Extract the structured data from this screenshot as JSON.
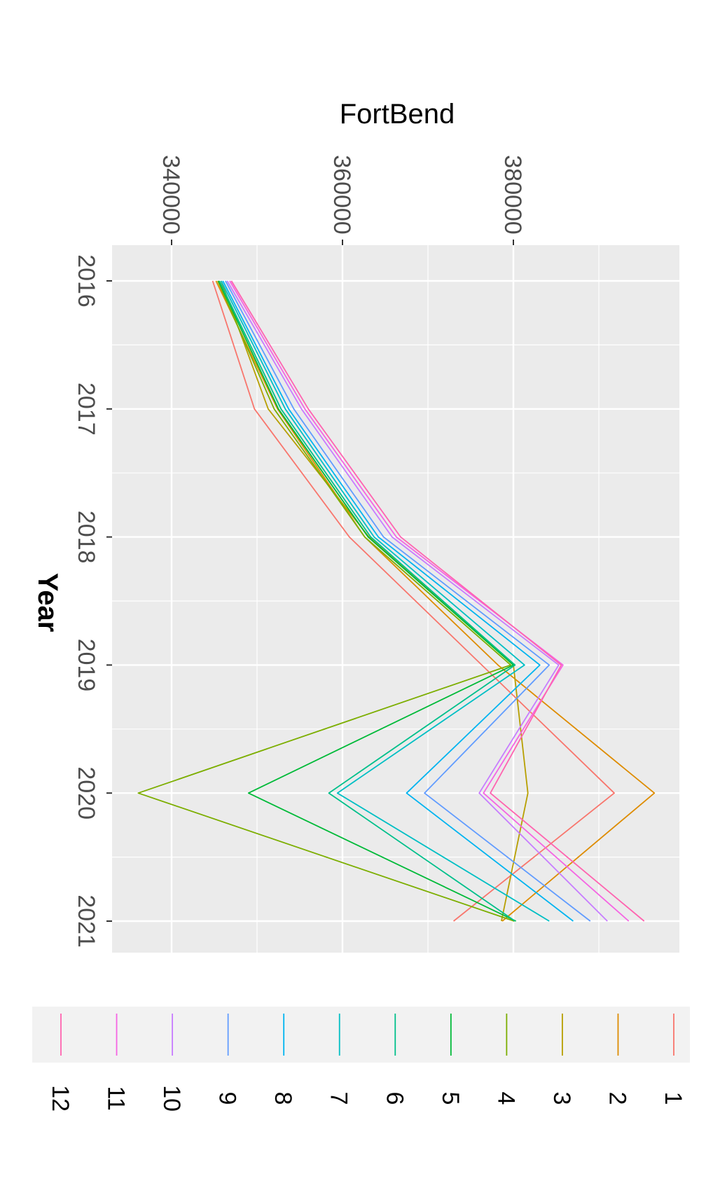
{
  "chart_data": {
    "type": "line",
    "title": "",
    "xlabel": "Year",
    "ylabel": "FortBend",
    "x": [
      2016,
      2017,
      2018,
      2019,
      2020,
      2021
    ],
    "x_tick_labels": [
      "2016",
      "2017",
      "2018",
      "2019",
      "2020",
      "2021"
    ],
    "y_ticks": [
      340000,
      360000,
      380000
    ],
    "y_tick_labels": [
      "340000",
      "360000",
      "380000"
    ],
    "xlim": [
      2015.7,
      2021.25
    ],
    "ylim": [
      333000,
      399500
    ],
    "grid": true,
    "legend_position": "bottom",
    "orientation": "rotated 90 degrees clockwise",
    "series": [
      {
        "name": "1",
        "color": "#F8766D",
        "values": [
          344800,
          349700,
          360800,
          376300,
          391800,
          373000
        ]
      },
      {
        "name": "2",
        "color": "#DE8C00",
        "values": [
          345200,
          352400,
          362600,
          378200,
          396500,
          378700
        ]
      },
      {
        "name": "3",
        "color": "#B79F00",
        "values": [
          345800,
          351300,
          363100,
          380000,
          381700,
          378600
        ]
      },
      {
        "name": "4",
        "color": "#7CAE00",
        "values": [
          345400,
          352000,
          362600,
          379700,
          336100,
          380100
        ]
      },
      {
        "name": "5",
        "color": "#00BA38",
        "values": [
          345500,
          352500,
          363000,
          380000,
          349000,
          380300
        ]
      },
      {
        "name": "6",
        "color": "#00C08B",
        "values": [
          345600,
          352800,
          363300,
          380200,
          358400,
          380200
        ]
      },
      {
        "name": "7",
        "color": "#00BFC4",
        "values": [
          345800,
          353300,
          363700,
          381300,
          359400,
          384200
        ]
      },
      {
        "name": "8",
        "color": "#00B4F0",
        "values": [
          346000,
          353700,
          364200,
          383100,
          367500,
          387000
        ]
      },
      {
        "name": "9",
        "color": "#619CFF",
        "values": [
          346300,
          354300,
          364800,
          384200,
          369600,
          389000
        ]
      },
      {
        "name": "10",
        "color": "#C77CFF",
        "values": [
          346500,
          355200,
          365800,
          385300,
          376000,
          391000
        ]
      },
      {
        "name": "11",
        "color": "#F564E3",
        "values": [
          346800,
          355600,
          366300,
          385800,
          376500,
          393500
        ]
      },
      {
        "name": "12",
        "color": "#FF64B0",
        "values": [
          347000,
          356000,
          366800,
          385600,
          377300,
          395300
        ]
      }
    ]
  }
}
